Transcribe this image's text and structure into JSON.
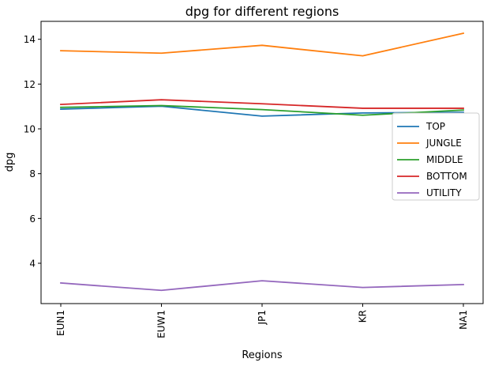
{
  "chart_data": {
    "type": "line",
    "title": "dpg for different regions",
    "xlabel": "Regions",
    "ylabel": "dpg",
    "categories": [
      "EUN1",
      "EUW1",
      "JP1",
      "KR",
      "NA1"
    ],
    "ylim": [
      2.2,
      14.8
    ],
    "yticks": [
      4,
      6,
      8,
      10,
      12,
      14
    ],
    "grid": false,
    "legend_position": "center-right",
    "series": [
      {
        "name": "TOP",
        "color": "#1f77b4",
        "values": [
          10.88,
          11.01,
          10.57,
          10.71,
          10.74
        ]
      },
      {
        "name": "JUNGLE",
        "color": "#ff7f0e",
        "values": [
          13.49,
          13.38,
          13.73,
          13.26,
          14.27
        ]
      },
      {
        "name": "MIDDLE",
        "color": "#2ca02c",
        "values": [
          10.96,
          11.04,
          10.86,
          10.61,
          10.84
        ]
      },
      {
        "name": "BOTTOM",
        "color": "#d62728",
        "values": [
          11.09,
          11.3,
          11.12,
          10.92,
          10.92
        ]
      },
      {
        "name": "UTILITY",
        "color": "#9467bd",
        "values": [
          3.12,
          2.79,
          3.22,
          2.92,
          3.05
        ]
      }
    ]
  }
}
